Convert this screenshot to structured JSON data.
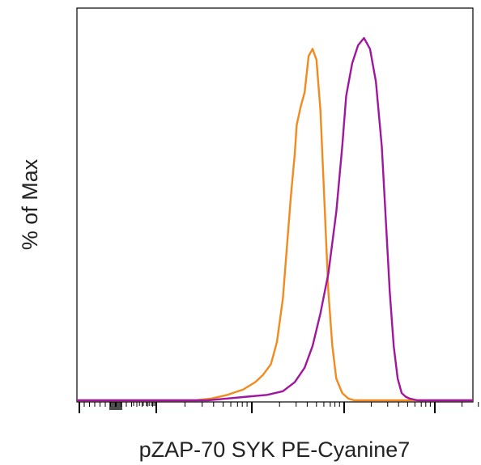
{
  "chart_data": {
    "type": "line",
    "title": "",
    "xlabel": "pZAP-70 SYK PE-Cyanine7",
    "ylabel": "% of Max",
    "xlim": [
      0,
      100
    ],
    "ylim": [
      0,
      100
    ],
    "x_scale": "biexponential (log-like decades)",
    "grid": false,
    "legend": "none",
    "series": [
      {
        "color": "#f28a1e",
        "x": [
          0,
          30,
          34,
          38,
          42,
          45,
          47,
          49,
          50.5,
          52,
          53,
          54,
          55,
          55.5,
          56.5,
          57.5,
          58.5,
          59.5,
          60.5,
          61.5,
          62.5,
          63.5,
          64.5,
          65.5,
          67,
          68.5,
          70,
          73,
          100
        ],
        "y": [
          0,
          0,
          0.5,
          1.5,
          3,
          5,
          7,
          10,
          16,
          28,
          42,
          56,
          68,
          76,
          81,
          85,
          95,
          97,
          94,
          80,
          55,
          30,
          15,
          6,
          2,
          0.5,
          0,
          0,
          0
        ]
      },
      {
        "color": "#a0169e",
        "x": [
          0,
          33,
          38,
          43,
          48,
          52,
          55,
          57.5,
          59.5,
          61.5,
          63.5,
          65.5,
          67,
          68,
          69.5,
          71,
          72.5,
          74,
          75.5,
          77,
          78,
          79,
          80,
          81,
          82,
          83,
          84,
          86,
          88,
          90,
          100
        ],
        "y": [
          0,
          0,
          0.5,
          1,
          1.5,
          2.5,
          5,
          9,
          15,
          24,
          35,
          52,
          70,
          84,
          93,
          98,
          100,
          97,
          88,
          70,
          50,
          30,
          15,
          6,
          2,
          1,
          0.5,
          0,
          0,
          0,
          0
        ]
      }
    ]
  }
}
